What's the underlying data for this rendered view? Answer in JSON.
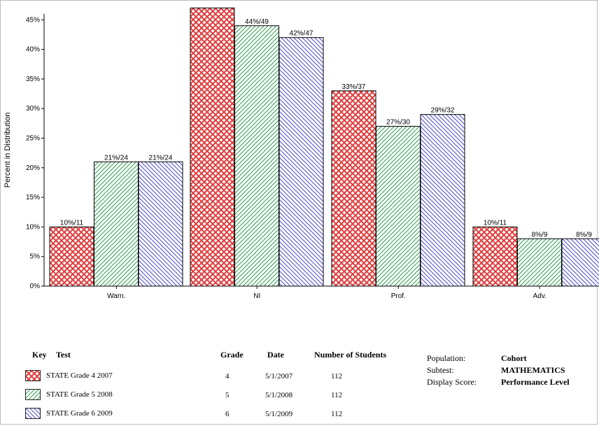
{
  "chart_data": {
    "type": "bar",
    "ylabel": "Percent in Distribution",
    "ylim": [
      0,
      46
    ],
    "yticks": [
      "0%",
      "5%",
      "10%",
      "15%",
      "20%",
      "25%",
      "30%",
      "35%",
      "40%",
      "45%"
    ],
    "categories": [
      "Warn.",
      "NI",
      "Prof.",
      "Adv."
    ],
    "series": [
      {
        "name": "STATE Grade 4 2007",
        "values": [
          10,
          47,
          33,
          10
        ],
        "labels": [
          "10%/11",
          "",
          "33%/37",
          "10%/11"
        ],
        "color": "#e23b3b",
        "pattern": "crosshatch"
      },
      {
        "name": "STATE Grade 5 2008",
        "values": [
          21,
          44,
          27,
          8
        ],
        "labels": [
          "21%/24",
          "44%/49",
          "27%/30",
          "8%/9"
        ],
        "color": "#2e9e4e",
        "pattern": "diag-right"
      },
      {
        "name": "STATE Grade 6 2009",
        "values": [
          21,
          42,
          29,
          8
        ],
        "labels": [
          "21%/24",
          "42%/47",
          "29%/32",
          "8%/9"
        ],
        "color": "#4a4ad8",
        "pattern": "diag-left"
      }
    ],
    "grid": false
  },
  "legend": {
    "headers": {
      "key": "Key",
      "test": "Test",
      "grade": "Grade",
      "date": "Date",
      "students": "Number of Students"
    },
    "rows": [
      {
        "test": "STATE Grade 4 2007",
        "grade": "4",
        "date": "5/1/2007",
        "students": "112"
      },
      {
        "test": "STATE Grade 5 2008",
        "grade": "5",
        "date": "5/1/2008",
        "students": "112"
      },
      {
        "test": "STATE Grade 6 2009",
        "grade": "6",
        "date": "5/1/2009",
        "students": "112"
      }
    ]
  },
  "info": {
    "population_label": "Population:",
    "population_value": "Cohort",
    "subtest_label": "Subtest:",
    "subtest_value": "MATHEMATICS",
    "score_label": "Display Score:",
    "score_value": "Performance Level"
  }
}
